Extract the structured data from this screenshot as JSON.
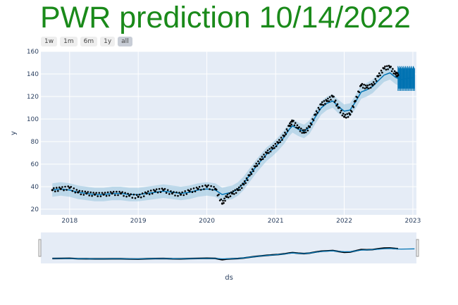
{
  "title": "PWR prediction 10/14/2022",
  "range_buttons": [
    "1w",
    "1m",
    "6m",
    "1y",
    "all"
  ],
  "active_range": "all",
  "colors": {
    "title": "#1a8a1a",
    "plot_bg": "#e5ecf6",
    "forecast_line": "#0072B2",
    "uncertainty_band": "#9ecae1",
    "actual_points": "#000000"
  },
  "chart_data": {
    "type": "line",
    "title": "PWR prediction 10/14/2022",
    "xlabel": "ds",
    "ylabel": "y",
    "x_range": [
      "2017-08-01",
      "2023-01-20"
    ],
    "ylim": [
      15,
      160
    ],
    "y_ticks": [
      20,
      40,
      60,
      80,
      100,
      120,
      140,
      160
    ],
    "x_ticks": [
      "2018",
      "2019",
      "2020",
      "2021",
      "2022",
      "2023"
    ],
    "grid": true,
    "legend": "none",
    "series": [
      {
        "kind": "actual",
        "points": [
          [
            "2017-10-01",
            37
          ],
          [
            "2017-11-15",
            38
          ],
          [
            "2018-01-01",
            39
          ],
          [
            "2018-02-15",
            35
          ],
          [
            "2018-04-01",
            34
          ],
          [
            "2018-05-15",
            33
          ],
          [
            "2018-07-01",
            33
          ],
          [
            "2018-08-15",
            34
          ],
          [
            "2018-10-01",
            34
          ],
          [
            "2018-11-15",
            32
          ],
          [
            "2019-01-01",
            31
          ],
          [
            "2019-02-15",
            34
          ],
          [
            "2019-04-01",
            36
          ],
          [
            "2019-05-15",
            37
          ],
          [
            "2019-07-01",
            34
          ],
          [
            "2019-08-15",
            33
          ],
          [
            "2019-10-01",
            36
          ],
          [
            "2019-11-15",
            38
          ],
          [
            "2020-01-01",
            40
          ],
          [
            "2020-02-15",
            38
          ],
          [
            "2020-03-23",
            25
          ],
          [
            "2020-04-15",
            31
          ],
          [
            "2020-05-15",
            34
          ],
          [
            "2020-06-15",
            37
          ],
          [
            "2020-07-15",
            42
          ],
          [
            "2020-08-15",
            50
          ],
          [
            "2020-09-15",
            58
          ],
          [
            "2020-10-15",
            64
          ],
          [
            "2020-11-15",
            70
          ],
          [
            "2020-12-15",
            74
          ],
          [
            "2021-01-15",
            79
          ],
          [
            "2021-02-15",
            85
          ],
          [
            "2021-03-15",
            94
          ],
          [
            "2021-04-01",
            98
          ],
          [
            "2021-05-01",
            92
          ],
          [
            "2021-06-01",
            88
          ],
          [
            "2021-07-01",
            93
          ],
          [
            "2021-08-01",
            104
          ],
          [
            "2021-09-01",
            113
          ],
          [
            "2021-10-01",
            116
          ],
          [
            "2021-11-01",
            120
          ],
          [
            "2021-12-01",
            110
          ],
          [
            "2022-01-01",
            102
          ],
          [
            "2022-02-01",
            104
          ],
          [
            "2022-03-01",
            116
          ],
          [
            "2022-04-01",
            130
          ],
          [
            "2022-05-01",
            128
          ],
          [
            "2022-06-01",
            130
          ],
          [
            "2022-07-01",
            138
          ],
          [
            "2022-08-01",
            145
          ],
          [
            "2022-09-01",
            146
          ],
          [
            "2022-10-01",
            140
          ],
          [
            "2022-10-14",
            139
          ]
        ]
      },
      {
        "kind": "forecast",
        "points": [
          [
            "2017-10-01",
            37
          ],
          [
            "2017-11-15",
            38
          ],
          [
            "2018-01-01",
            37
          ],
          [
            "2018-02-15",
            35
          ],
          [
            "2018-04-01",
            34
          ],
          [
            "2018-05-15",
            33
          ],
          [
            "2018-07-01",
            33
          ],
          [
            "2018-08-15",
            34
          ],
          [
            "2018-10-01",
            34
          ],
          [
            "2018-11-15",
            33
          ],
          [
            "2019-01-01",
            33
          ],
          [
            "2019-02-15",
            34
          ],
          [
            "2019-04-01",
            35
          ],
          [
            "2019-05-15",
            36
          ],
          [
            "2019-07-01",
            35
          ],
          [
            "2019-08-15",
            34
          ],
          [
            "2019-10-01",
            35
          ],
          [
            "2019-11-15",
            37
          ],
          [
            "2020-01-01",
            38
          ],
          [
            "2020-02-15",
            37
          ],
          [
            "2020-03-23",
            33
          ],
          [
            "2020-04-15",
            34
          ],
          [
            "2020-05-15",
            35
          ],
          [
            "2020-06-15",
            38
          ],
          [
            "2020-07-15",
            43
          ],
          [
            "2020-08-15",
            50
          ],
          [
            "2020-09-15",
            57
          ],
          [
            "2020-10-15",
            63
          ],
          [
            "2020-11-15",
            69
          ],
          [
            "2020-12-15",
            73
          ],
          [
            "2021-01-15",
            78
          ],
          [
            "2021-02-15",
            84
          ],
          [
            "2021-03-15",
            91
          ],
          [
            "2021-04-01",
            94
          ],
          [
            "2021-05-01",
            91
          ],
          [
            "2021-06-01",
            89
          ],
          [
            "2021-07-01",
            93
          ],
          [
            "2021-08-01",
            102
          ],
          [
            "2021-09-01",
            110
          ],
          [
            "2021-10-01",
            114
          ],
          [
            "2021-11-01",
            116
          ],
          [
            "2021-12-01",
            111
          ],
          [
            "2022-01-01",
            107
          ],
          [
            "2022-02-01",
            108
          ],
          [
            "2022-03-01",
            115
          ],
          [
            "2022-04-01",
            124
          ],
          [
            "2022-05-01",
            126
          ],
          [
            "2022-06-01",
            129
          ],
          [
            "2022-07-01",
            134
          ],
          [
            "2022-08-01",
            139
          ],
          [
            "2022-09-01",
            141
          ],
          [
            "2022-10-01",
            137
          ],
          [
            "2022-10-14",
            136
          ],
          [
            "2022-11-01",
            135
          ],
          [
            "2022-12-01",
            136
          ],
          [
            "2023-01-10",
            137
          ]
        ]
      }
    ],
    "band_halfwidth": 6,
    "forecast_start": "2022-10-14",
    "forecast_end": "2023-01-10",
    "forecast_band": [
      125,
      147
    ]
  }
}
